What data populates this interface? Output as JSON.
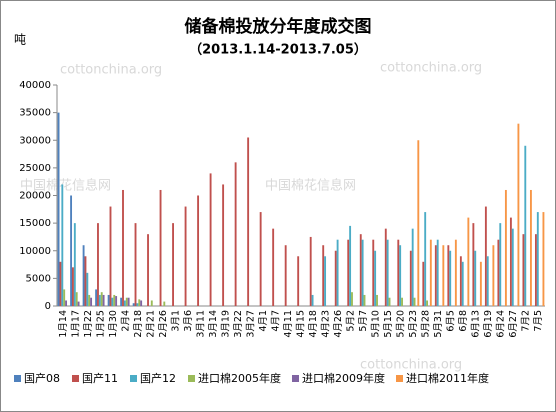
{
  "chart_data": {
    "type": "bar",
    "title": "储备棉投放分年度成交图",
    "subtitle": "（2013.1.14-2013.7.05）",
    "y_axis_label": "吨",
    "watermarks": [
      "cottonchina.org",
      "中国棉花信息网"
    ],
    "categories": [
      "1月14",
      "1月17",
      "1月22",
      "1月25",
      "1月30",
      "2月4",
      "2月18",
      "2月21",
      "2月26",
      "3月1",
      "3月6",
      "3月11",
      "3月14",
      "3月19",
      "3月22",
      "3月27",
      "4月1",
      "4月7",
      "4月11",
      "4月15",
      "4月18",
      "4月23",
      "4月26",
      "5月2",
      "5月7",
      "5月10",
      "5月15",
      "5月20",
      "5月23",
      "5月28",
      "5月31",
      "6月5",
      "6月8",
      "6月13",
      "6月19",
      "6月24",
      "6月27",
      "7月2",
      "7月5"
    ],
    "series": [
      {
        "name": "国产08",
        "color": "#4f81bd",
        "values": [
          35000,
          20000,
          11000,
          3000,
          2000,
          1500,
          500,
          0,
          0,
          0,
          0,
          0,
          0,
          0,
          0,
          0,
          0,
          0,
          0,
          0,
          0,
          0,
          0,
          0,
          0,
          0,
          0,
          0,
          0,
          0,
          0,
          0,
          0,
          0,
          0,
          0,
          0,
          0,
          0
        ]
      },
      {
        "name": "国产11",
        "color": "#c0504d",
        "values": [
          8000,
          7000,
          9000,
          15000,
          18000,
          21000,
          15000,
          13000,
          21000,
          15000,
          18000,
          20000,
          24000,
          22000,
          26000,
          30500,
          17000,
          14000,
          11000,
          9000,
          12500,
          11000,
          10000,
          12000,
          13000,
          12000,
          14000,
          12000,
          10000,
          8000,
          11000,
          11000,
          9000,
          15000,
          18000,
          12000,
          16000,
          13000,
          13000
        ]
      },
      {
        "name": "国产12",
        "color": "#4bacc6",
        "values": [
          22000,
          15000,
          6000,
          2000,
          1500,
          1000,
          500,
          0,
          0,
          0,
          0,
          0,
          0,
          0,
          0,
          0,
          0,
          0,
          0,
          0,
          2000,
          9000,
          12000,
          14500,
          12000,
          10000,
          12000,
          11000,
          14000,
          17000,
          12000,
          10000,
          8000,
          10000,
          9000,
          15000,
          14000,
          29000,
          17000
        ]
      },
      {
        "name": "进口棉2005年度",
        "color": "#9bbb59",
        "values": [
          3000,
          2500,
          2000,
          2500,
          2000,
          1500,
          1200,
          1000,
          800,
          0,
          0,
          0,
          0,
          0,
          0,
          0,
          0,
          0,
          0,
          0,
          0,
          0,
          0,
          2500,
          2000,
          2000,
          1500,
          1500,
          1500,
          1000,
          0,
          0,
          0,
          0,
          0,
          0,
          0,
          0,
          0
        ]
      },
      {
        "name": "进口棉2009年度",
        "color": "#8064a2",
        "values": [
          1000,
          800,
          1500,
          2000,
          1800,
          1500,
          1000,
          0,
          0,
          0,
          0,
          0,
          0,
          0,
          0,
          0,
          0,
          0,
          0,
          0,
          0,
          0,
          0,
          0,
          0,
          0,
          0,
          0,
          0,
          0,
          0,
          0,
          0,
          0,
          0,
          0,
          0,
          0,
          0
        ]
      },
      {
        "name": "进口棉2011年度",
        "color": "#f79646",
        "values": [
          0,
          0,
          0,
          0,
          0,
          0,
          0,
          0,
          0,
          0,
          0,
          0,
          0,
          0,
          0,
          0,
          0,
          0,
          0,
          0,
          0,
          0,
          0,
          0,
          0,
          0,
          0,
          0,
          30000,
          12000,
          11000,
          12000,
          16000,
          8000,
          11000,
          21000,
          33000,
          21000,
          17000
        ]
      }
    ],
    "ylim": [
      0,
      40000
    ],
    "yticks": [
      0,
      5000,
      10000,
      15000,
      20000,
      25000,
      30000,
      35000,
      40000
    ],
    "grid": false
  }
}
